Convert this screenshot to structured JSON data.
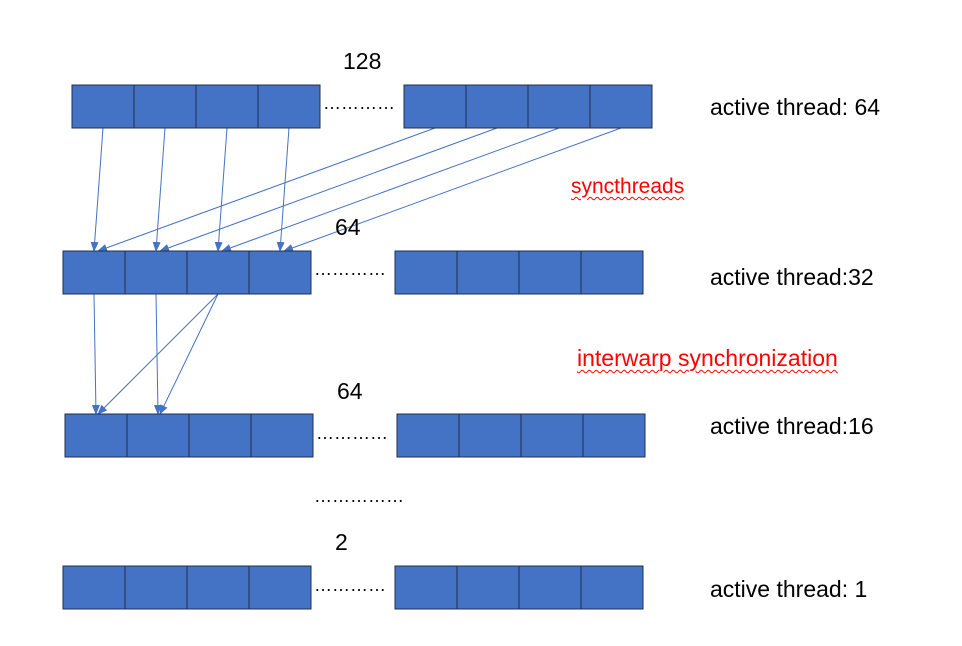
{
  "colors": {
    "cell_fill": "#4472C4",
    "cell_stroke": "#1F2F50",
    "arrow": "#4472C4",
    "annotation": "#FF0000"
  },
  "levels": [
    {
      "count": "128",
      "dots": "…………",
      "active": "active thread: 64"
    },
    {
      "count": "64",
      "dots": "…………",
      "active": "active thread:32"
    },
    {
      "count": "64",
      "dots": "…………",
      "active": "active thread:16"
    },
    {
      "count": "2",
      "dots": "…………",
      "active": "active thread: 1"
    }
  ],
  "ellipsis_between": "……………",
  "annotations": {
    "sync": "syncthreads",
    "interwarp": "interwarp synchronization"
  }
}
